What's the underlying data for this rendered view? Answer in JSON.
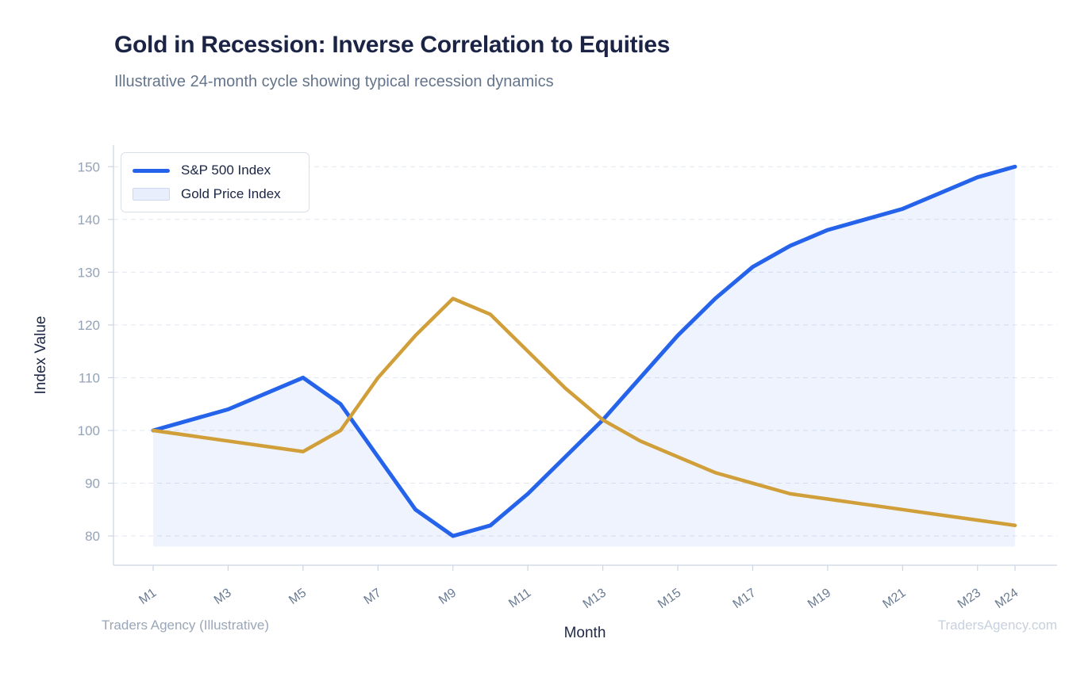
{
  "header": {
    "title": "Gold in Recession: Inverse Correlation to Equities",
    "subtitle": "Illustrative 24-month cycle showing typical recession dynamics"
  },
  "footer": {
    "source": "Traders Agency (Illustrative)",
    "watermark": "TradersAgency.com"
  },
  "legend": {
    "position": "top-left",
    "entries": [
      {
        "label": "S&P 500 Index",
        "swatch": "line",
        "color": "#2563eb"
      },
      {
        "label": "Gold Price Index",
        "swatch": "area",
        "color": "#e9eefc"
      }
    ]
  },
  "chart_data": {
    "type": "line",
    "title": "Gold in Recession: Inverse Correlation to Equities",
    "subtitle": "Illustrative 24-month cycle showing typical recession dynamics",
    "xlabel": "Month",
    "ylabel": "Index Value",
    "x_categories": [
      "M1",
      "M2",
      "M3",
      "M4",
      "M5",
      "M6",
      "M7",
      "M8",
      "M9",
      "M10",
      "M11",
      "M12",
      "M13",
      "M14",
      "M15",
      "M16",
      "M17",
      "M18",
      "M19",
      "M20",
      "M21",
      "M22",
      "M23",
      "M24"
    ],
    "x_ticks_shown": [
      "M1",
      "M3",
      "M5",
      "M7",
      "M9",
      "M11",
      "M13",
      "M15",
      "M17",
      "M19",
      "M21",
      "M23",
      "M24"
    ],
    "y_ticks": [
      80,
      90,
      100,
      110,
      120,
      130,
      140,
      150
    ],
    "ylim": [
      78,
      151
    ],
    "grid": "horizontal-dashed",
    "legend_position": "top-left",
    "series": [
      {
        "name": "S&P 500 Index",
        "type": "line-with-area",
        "color": "#2563eb",
        "area_fill": "rgba(37,99,235,0.08)",
        "values": [
          100,
          102,
          104,
          107,
          110,
          105,
          95,
          85,
          80,
          82,
          88,
          95,
          102,
          110,
          118,
          125,
          131,
          135,
          138,
          140,
          142,
          145,
          148,
          150
        ]
      },
      {
        "name": "Gold Price Index",
        "type": "line",
        "color": "#d19f3a",
        "values": [
          100,
          99,
          98,
          97,
          96,
          100,
          110,
          118,
          125,
          122,
          115,
          108,
          102,
          98,
          95,
          92,
          90,
          88,
          87,
          86,
          85,
          84,
          83,
          82
        ]
      }
    ],
    "colors": {
      "grid": "#e2e8f0",
      "axis": "#cbd5e1",
      "y_tick_label": "#94a3b8",
      "x_tick_label": "#6b7c93",
      "axis_title": "#1e2846"
    }
  }
}
